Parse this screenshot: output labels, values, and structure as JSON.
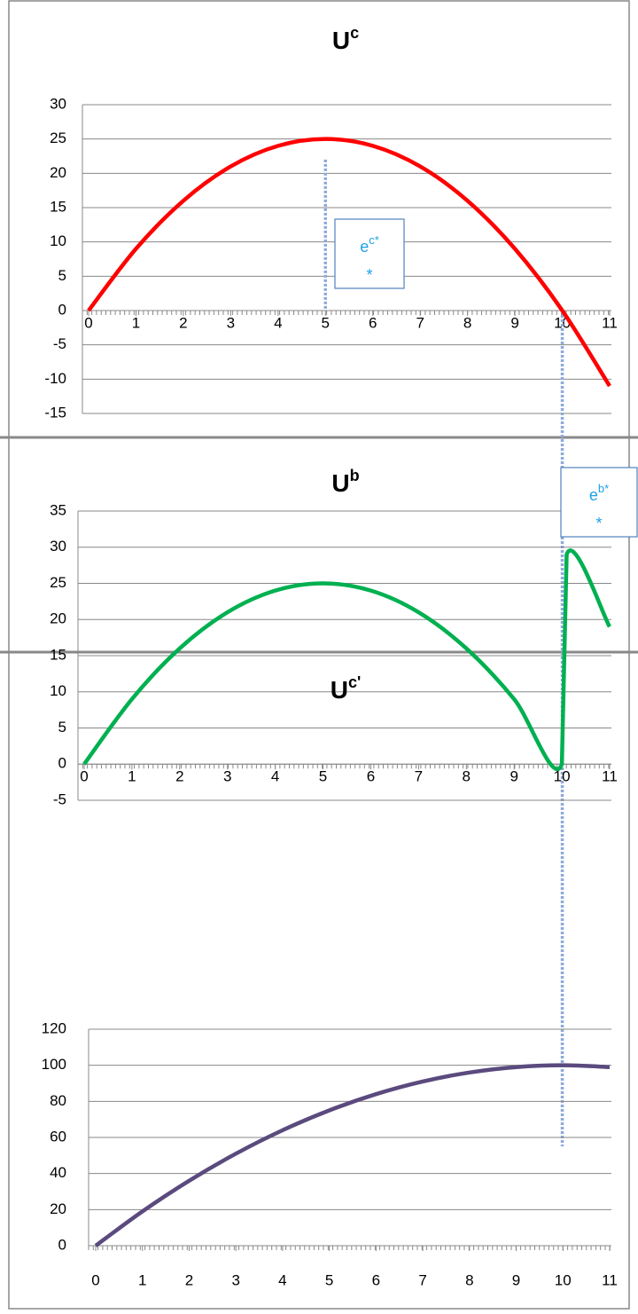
{
  "chart_data": [
    {
      "type": "line",
      "title": "U",
      "title_sup": "c",
      "x": [
        0,
        1,
        2,
        3,
        4,
        5,
        6,
        7,
        8,
        9,
        10,
        11
      ],
      "series": [
        {
          "color": "#ff0000",
          "values": [
            0,
            9,
            16,
            21,
            24,
            25,
            24,
            21,
            16,
            9,
            0,
            -11
          ]
        }
      ],
      "xlim": [
        0,
        11
      ],
      "xticks": [
        0,
        1,
        2,
        3,
        4,
        5,
        6,
        7,
        8,
        9,
        10,
        11
      ],
      "ylim": [
        -15,
        30
      ],
      "yticks": [
        -15,
        -10,
        -5,
        0,
        5,
        10,
        15,
        20,
        25,
        30
      ],
      "grid": true,
      "vlines": [
        {
          "x": 5,
          "y": 22
        },
        {
          "x": 10,
          "y": 0
        }
      ],
      "annotation": {
        "text": "e",
        "sup": "c*",
        "line2": "*"
      }
    },
    {
      "type": "line",
      "title": "U",
      "title_sup": "b",
      "x": [
        0,
        1,
        2,
        3,
        4,
        5,
        6,
        7,
        8,
        9,
        10,
        10.1,
        11
      ],
      "series": [
        {
          "color": "#00b050",
          "values": [
            0,
            9,
            16,
            21,
            24,
            25,
            24,
            21,
            16,
            9,
            0,
            29,
            19
          ]
        }
      ],
      "xlim": [
        0,
        11
      ],
      "xticks": [
        0,
        1,
        2,
        3,
        4,
        5,
        6,
        7,
        8,
        9,
        10,
        11
      ],
      "ylim": [
        -5,
        35
      ],
      "yticks": [
        -5,
        0,
        5,
        10,
        15,
        20,
        25,
        30,
        35
      ],
      "grid": true,
      "annotation": {
        "text": "e",
        "sup": "b*",
        "line2": "*"
      }
    },
    {
      "type": "line",
      "title": "U",
      "title_sup": "c'",
      "x": [
        0,
        1,
        2,
        3,
        4,
        5,
        6,
        7,
        8,
        9,
        10,
        11
      ],
      "series": [
        {
          "color": "#5b4a7e",
          "values": [
            0,
            19,
            36,
            51,
            64,
            75,
            84,
            91,
            96,
            99,
            100,
            99
          ]
        }
      ],
      "xlim": [
        0,
        11
      ],
      "xticks": [
        0,
        1,
        2,
        3,
        4,
        5,
        6,
        7,
        8,
        9,
        10,
        11
      ],
      "ylim": [
        0,
        120
      ],
      "yticks": [
        0,
        20,
        40,
        60,
        80,
        100,
        120
      ],
      "grid": true
    }
  ]
}
